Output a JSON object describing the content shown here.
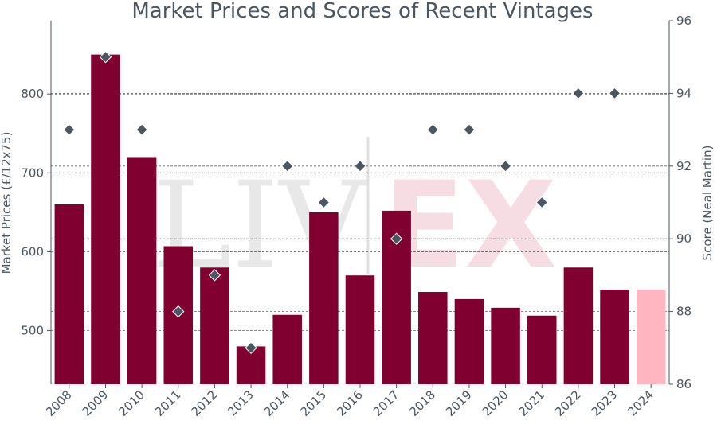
{
  "chart_data": {
    "type": "bar",
    "title": "Market Prices and Scores of Recent Vintages",
    "ylabel": "Market Prices (£/12x75)",
    "y2label": "Score (Neal Martin)",
    "categories": [
      "2008",
      "2009",
      "2010",
      "2011",
      "2012",
      "2013",
      "2014",
      "2015",
      "2016",
      "2017",
      "2018",
      "2019",
      "2020",
      "2021",
      "2022",
      "2023",
      "2024"
    ],
    "ylim": [
      432,
      893
    ],
    "yticks": [
      500,
      600,
      700,
      800
    ],
    "y2lim": [
      86,
      96
    ],
    "y2ticks": [
      86,
      88,
      90,
      92,
      94,
      96
    ],
    "grid": true,
    "series": [
      {
        "kind": "bar",
        "axis": "left",
        "values": [
          660,
          850,
          720,
          607,
          580,
          480,
          520,
          650,
          570,
          652,
          549,
          540,
          529,
          519,
          580,
          552,
          552
        ],
        "colors": [
          "#800030",
          "#800030",
          "#800030",
          "#800030",
          "#800030",
          "#800030",
          "#800030",
          "#800030",
          "#800030",
          "#800030",
          "#800030",
          "#800030",
          "#800030",
          "#800030",
          "#800030",
          "#800030",
          "#ffb6c1"
        ]
      },
      {
        "kind": "scatter",
        "axis": "right",
        "marker": "diamond",
        "color": "#4a5662",
        "values": [
          93,
          95,
          93,
          88,
          89,
          87,
          92,
          91,
          92,
          90,
          93,
          93,
          92,
          91,
          94,
          94,
          null
        ]
      }
    ],
    "watermark": "LIV-EX"
  }
}
